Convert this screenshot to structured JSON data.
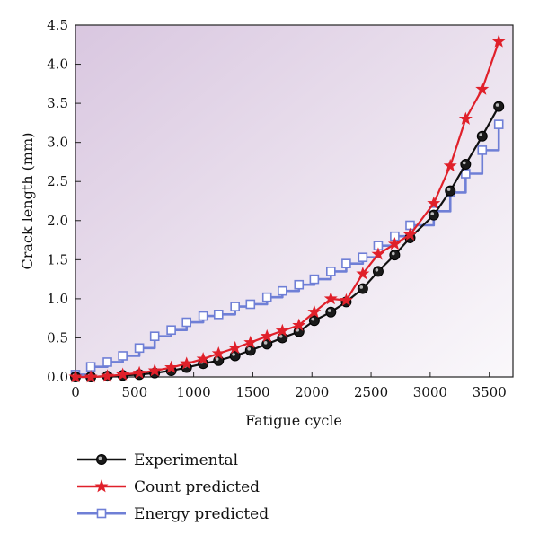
{
  "chart_data": {
    "type": "line",
    "title": "",
    "xlabel": "Fatigue cycle",
    "ylabel": "Crack length (mm)",
    "xlim": [
      0,
      3700
    ],
    "ylim": [
      0,
      4.5
    ],
    "x_ticks": [
      0,
      500,
      1000,
      1500,
      2000,
      2500,
      3000,
      3500
    ],
    "y_ticks": [
      "0.0",
      "0.5",
      "1.0",
      "1.5",
      "2.0",
      "2.5",
      "3.0",
      "3.5",
      "4.0",
      "4.5"
    ],
    "grid": false,
    "legend_position": "bottom",
    "series": [
      {
        "name": "Experimental",
        "color": "#111111",
        "marker": "circle",
        "x": [
          0,
          130,
          270,
          400,
          540,
          670,
          810,
          940,
          1080,
          1210,
          1350,
          1480,
          1620,
          1750,
          1890,
          2020,
          2160,
          2290,
          2430,
          2560,
          2700,
          2830,
          3030,
          3170,
          3300,
          3440,
          3580
        ],
        "y": [
          0.0,
          0.0,
          0.01,
          0.02,
          0.03,
          0.05,
          0.08,
          0.12,
          0.17,
          0.21,
          0.27,
          0.34,
          0.42,
          0.5,
          0.58,
          0.72,
          0.83,
          0.96,
          1.13,
          1.35,
          1.56,
          1.78,
          2.07,
          2.38,
          2.72,
          3.08,
          3.46
        ]
      },
      {
        "name": "Count predicted",
        "color": "#e0202a",
        "marker": "star",
        "x": [
          0,
          130,
          270,
          400,
          540,
          670,
          810,
          940,
          1080,
          1210,
          1350,
          1480,
          1620,
          1750,
          1890,
          2020,
          2160,
          2290,
          2430,
          2560,
          2700,
          2830,
          3030,
          3170,
          3300,
          3440,
          3580
        ],
        "y": [
          0.0,
          0.0,
          0.01,
          0.03,
          0.05,
          0.08,
          0.12,
          0.17,
          0.23,
          0.3,
          0.37,
          0.44,
          0.52,
          0.59,
          0.66,
          0.83,
          1.0,
          0.98,
          1.32,
          1.57,
          1.7,
          1.82,
          2.22,
          2.7,
          3.3,
          3.68,
          4.29
        ]
      },
      {
        "name": "Energy predicted",
        "color": "#6f7fd6",
        "marker": "square",
        "x": [
          0,
          130,
          270,
          400,
          540,
          670,
          810,
          940,
          1080,
          1210,
          1350,
          1480,
          1620,
          1750,
          1890,
          2020,
          2160,
          2290,
          2430,
          2560,
          2700,
          2830,
          3030,
          3170,
          3300,
          3440,
          3580
        ],
        "y": [
          0.03,
          0.13,
          0.19,
          0.27,
          0.37,
          0.52,
          0.6,
          0.7,
          0.78,
          0.8,
          0.9,
          0.93,
          1.02,
          1.1,
          1.18,
          1.25,
          1.35,
          1.45,
          1.53,
          1.68,
          1.8,
          1.94,
          2.12,
          2.36,
          2.6,
          2.9,
          3.23
        ]
      }
    ]
  }
}
